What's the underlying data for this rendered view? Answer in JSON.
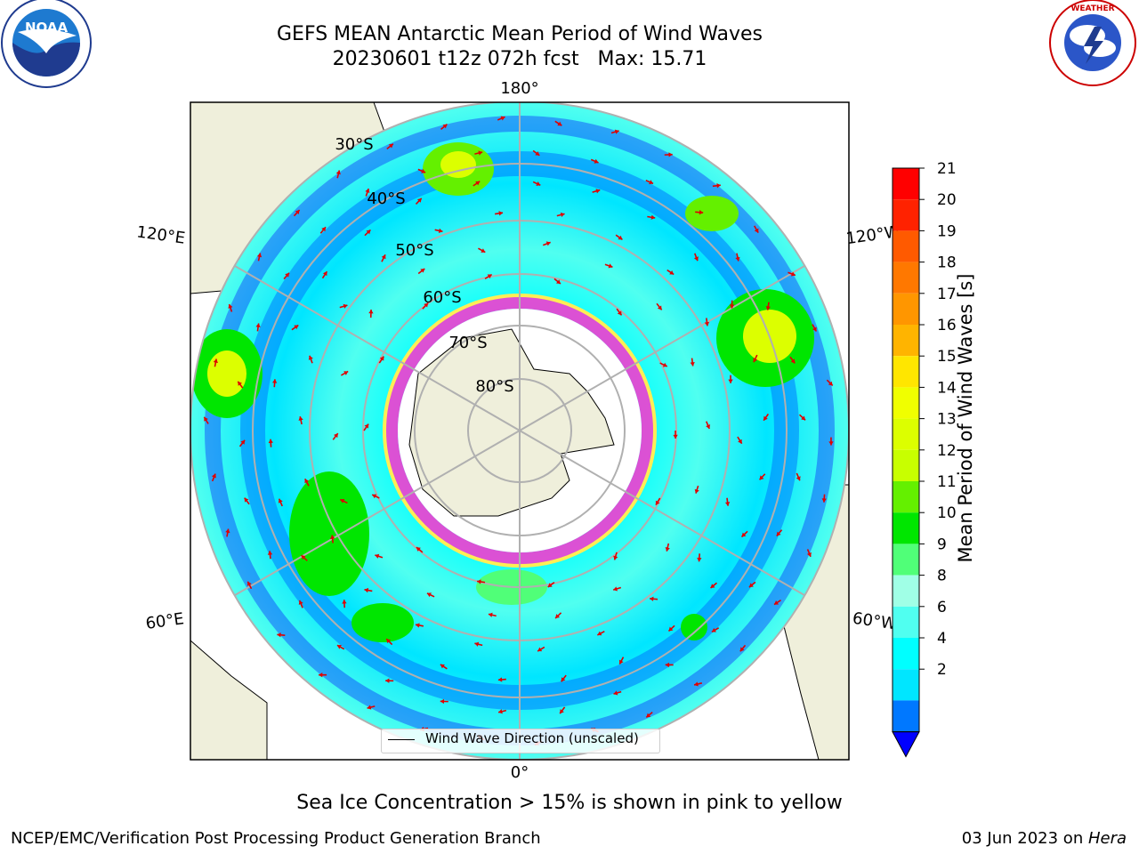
{
  "header": {
    "title_line1": "GEFS MEAN Antarctic Mean Period of Wind Waves",
    "title_line2": "20230601 t12z 072h fcst   Max: 15.71"
  },
  "logos": {
    "left": {
      "name": "NOAA",
      "ring_text": "NATIONAL OCEANIC AND ATMOSPHERIC ADMINISTRATION · U.S. DEPARTMENT OF COMMERCE"
    },
    "right": {
      "ring_text": "NATIONAL WEATHER SERVICE"
    }
  },
  "map": {
    "projection": "south polar stereographic",
    "longitude_labels": {
      "top": "180°",
      "bottom": "0°",
      "upper_left": "120°E",
      "upper_right": "120°W",
      "lower_left": "60°E",
      "lower_right": "60°W"
    },
    "latitude_labels": [
      "30°S",
      "40°S",
      "50°S",
      "60°S",
      "70°S",
      "80°S"
    ],
    "legend_entry": "Wind Wave Direction (unscaled)",
    "colors": {
      "land": "#efefdb",
      "ice_high": "#ff33cc",
      "ice_low": "#ffee55",
      "arrows": "#e00000",
      "grid": "#b0b0b0"
    }
  },
  "colorbar": {
    "label": "Mean Period of Wind Waves [s]",
    "ticks": [
      "21",
      "20",
      "19",
      "18",
      "17",
      "16",
      "15",
      "14",
      "13",
      "12",
      "11",
      "10",
      "9",
      "8",
      "6",
      "4",
      "2"
    ],
    "colors_top_to_bottom": [
      "#ff0000",
      "#ff2200",
      "#ff5a00",
      "#ff7800",
      "#ff9600",
      "#ffb400",
      "#ffe600",
      "#f0ff00",
      "#dcff00",
      "#c8ff00",
      "#64f000",
      "#00e600",
      "#50ff78",
      "#a0ffe6",
      "#50fff0",
      "#00ffff",
      "#00e6ff",
      "#0078ff"
    ],
    "extend_color": "#0000ff"
  },
  "caption": "Sea Ice Concentration > 15% is shown in pink to yellow",
  "footer": {
    "left": "NCEP/EMC/Verification Post Processing Product Generation Branch",
    "right_date": "03 Jun 2023 on ",
    "right_host": "Hera"
  }
}
